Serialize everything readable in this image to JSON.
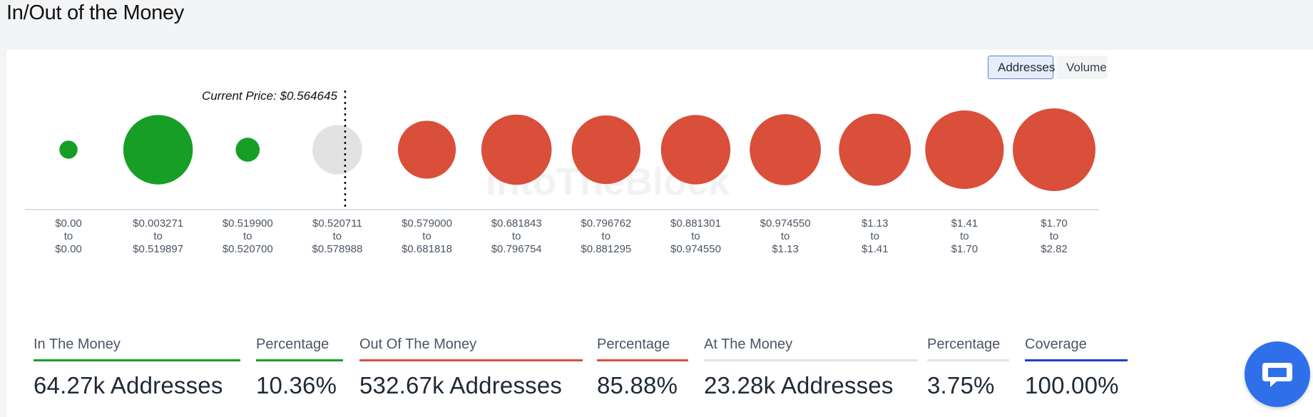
{
  "page": {
    "title": "In/Out of the Money"
  },
  "toggle": {
    "addresses_label": "Addresses",
    "volume_label": "Volume",
    "active": "Addresses"
  },
  "chart_data": {
    "type": "bubble",
    "current_price_label": "Current Price: $0.564645",
    "watermark": "IntoTheBlock",
    "colors": {
      "in": "#179e27",
      "out": "#d94f3a",
      "at": "#e2e2e2"
    },
    "buckets": [
      {
        "range_low": "$0.00",
        "range_high": "$0.00",
        "status": "in",
        "relative_size": 0.22
      },
      {
        "range_low": "$0.003271",
        "range_high": "$0.519897",
        "status": "in",
        "relative_size": 0.84
      },
      {
        "range_low": "$0.519900",
        "range_high": "$0.520700",
        "status": "in",
        "relative_size": 0.29
      },
      {
        "range_low": "$0.520711",
        "range_high": "$0.578988",
        "status": "at",
        "relative_size": 0.6
      },
      {
        "range_low": "$0.579000",
        "range_high": "$0.681818",
        "status": "out",
        "relative_size": 0.7
      },
      {
        "range_low": "$0.681843",
        "range_high": "$0.796754",
        "status": "out",
        "relative_size": 0.85
      },
      {
        "range_low": "$0.796762",
        "range_high": "$0.881295",
        "status": "out",
        "relative_size": 0.83
      },
      {
        "range_low": "$0.881301",
        "range_high": "$0.974550",
        "status": "out",
        "relative_size": 0.84
      },
      {
        "range_low": "$0.974550",
        "range_high": "$1.13",
        "status": "out",
        "relative_size": 0.86
      },
      {
        "range_low": "$1.13",
        "range_high": "$1.41",
        "status": "out",
        "relative_size": 0.87
      },
      {
        "range_low": "$1.41",
        "range_high": "$1.70",
        "status": "out",
        "relative_size": 0.95
      },
      {
        "range_low": "$1.70",
        "range_high": "$2.82",
        "status": "out",
        "relative_size": 1.0
      }
    ],
    "to_word": "to"
  },
  "summary": [
    {
      "label": "In The Money",
      "value": "64.27k Addresses",
      "color": "#179e27"
    },
    {
      "label": "Percentage",
      "value": "10.36%",
      "color": "#179e27"
    },
    {
      "label": "Out Of The Money",
      "value": "532.67k Addresses",
      "color": "#d94f3a"
    },
    {
      "label": "Percentage",
      "value": "85.88%",
      "color": "#d94f3a"
    },
    {
      "label": "At The Money",
      "value": "23.28k Addresses",
      "color": "#e2e2e2"
    },
    {
      "label": "Percentage",
      "value": "3.75%",
      "color": "#e2e2e2"
    },
    {
      "label": "Coverage",
      "value": "100.00%",
      "color": "#1d3fd1"
    }
  ],
  "chat": {
    "icon": "chat-bubble-icon"
  }
}
